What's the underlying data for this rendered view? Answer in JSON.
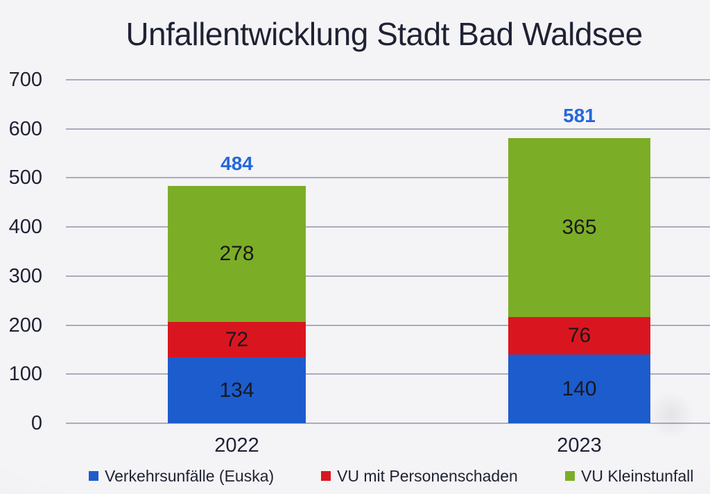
{
  "chart_data": {
    "type": "bar",
    "stacked": true,
    "title": "Unfallentwicklung Stadt Bad Waldsee",
    "categories": [
      "2022",
      "2023"
    ],
    "series": [
      {
        "name": "Verkehrsunfälle (Euska)",
        "color": "#1d5ccd",
        "values": [
          134,
          140
        ]
      },
      {
        "name": "VU mit Personenschaden",
        "color": "#d9161f",
        "values": [
          72,
          76
        ]
      },
      {
        "name": "VU Kleinstunfall",
        "color": "#7cad26",
        "values": [
          278,
          365
        ]
      }
    ],
    "totals": [
      484,
      581
    ],
    "ylim": [
      0,
      700
    ],
    "yticks": [
      0,
      100,
      200,
      300,
      400,
      500,
      600,
      700
    ],
    "grid": true,
    "legend_position": "bottom",
    "colors": {
      "background": "#f4f3f6",
      "text": "#1e2233",
      "grid": "#aaacbc",
      "total_label": "#2368dd",
      "segment_label": "#17181d"
    }
  }
}
